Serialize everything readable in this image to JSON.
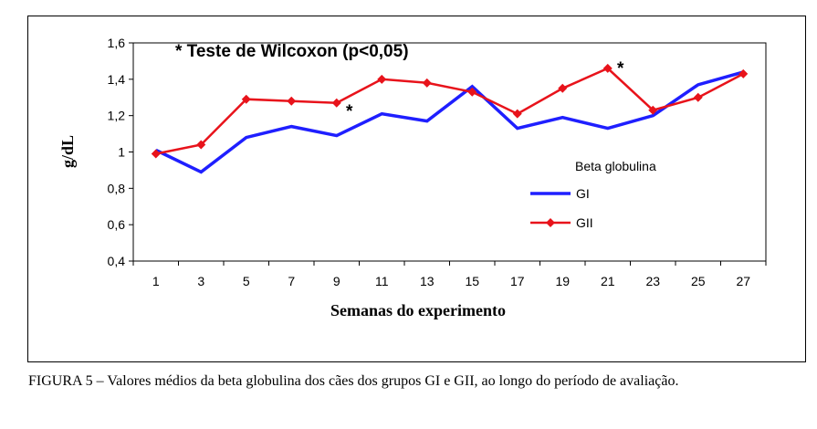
{
  "chart_data": {
    "type": "line",
    "title": "",
    "xlabel": "Semanas do experimento",
    "ylabel": "g/dL",
    "categories": [
      "1",
      "3",
      "5",
      "7",
      "9",
      "11",
      "13",
      "15",
      "17",
      "19",
      "21",
      "23",
      "25",
      "27"
    ],
    "yticks": [
      "1,6",
      "1,4",
      "1,2",
      "1",
      "0,8",
      "0,6",
      "0,4"
    ],
    "ylim": [
      0.4,
      1.6
    ],
    "legend_title": "Beta globulina",
    "legend_position": "right",
    "series": [
      {
        "name": "GI",
        "color": "#1f1fff",
        "marker": "none",
        "values": [
          1.01,
          0.89,
          1.08,
          1.14,
          1.09,
          1.21,
          1.17,
          1.36,
          1.13,
          1.19,
          1.13,
          1.2,
          1.37,
          1.44
        ]
      },
      {
        "name": "GII",
        "color": "#e8131b",
        "marker": "diamond",
        "values": [
          0.99,
          1.04,
          1.29,
          1.28,
          1.27,
          1.4,
          1.38,
          1.33,
          1.21,
          1.35,
          1.46,
          1.23,
          1.3,
          1.43
        ]
      }
    ],
    "annotations": {
      "test_note": "* Teste de Wilcoxon (p<0,05)",
      "star_1": "*",
      "star_2": "*"
    }
  },
  "caption": "FIGURA 5 – Valores médios da beta globulina dos cães dos grupos GI e GII, ao longo do período de avaliação."
}
